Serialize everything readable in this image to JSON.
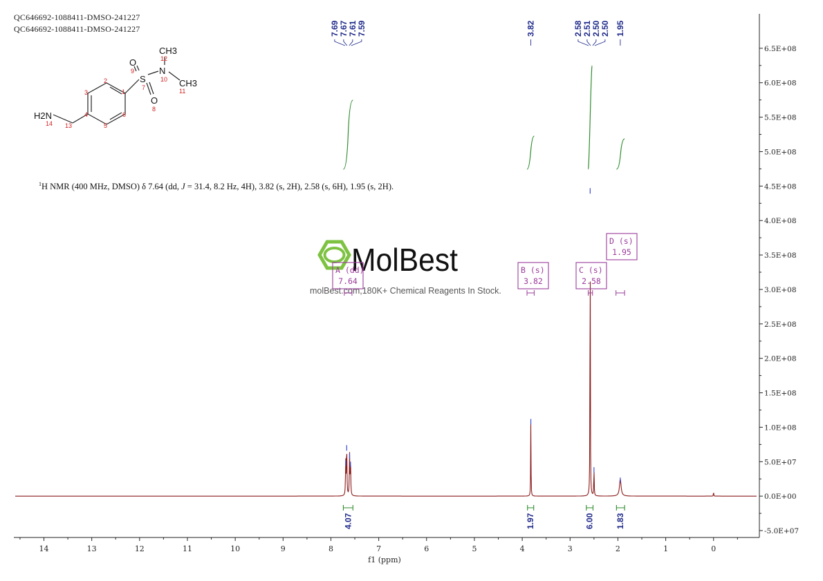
{
  "sample_ids": [
    "QC646692-1088411-DMSO-241227",
    "QC646692-1088411-DMSO-241227"
  ],
  "nmr_summary": {
    "prefix": "1",
    "text_a": "H NMR (400 MHz, DMSO) δ 7.64 (dd, ",
    "j": "J",
    "text_b": " = 31.4, 8.2 Hz, 4H), 3.82 (s, 2H), 2.58 (s, 6H), 1.95 (s, 2H)."
  },
  "watermark": {
    "brand": "MolBest",
    "tagline": "molBest.com,180K+ Chemical Reagents In Stock."
  },
  "molecule": {
    "atoms": [
      "CH3",
      "12",
      "O",
      "9",
      "N",
      "S",
      "10",
      "7",
      "CH3",
      "11",
      "O",
      "8",
      "1",
      "2",
      "3",
      "4",
      "5",
      "6",
      "H2N",
      "14",
      "13"
    ]
  },
  "colors": {
    "spectrum": "#8b1a1a",
    "integral": "#2e8b2e",
    "peak_label": "#1f2a8a",
    "multiplet_box": "#9b3b9b",
    "axis": "#222222",
    "atom_number": "#d02020"
  },
  "chart_data": {
    "type": "line",
    "xlabel": "f1 (ppm)",
    "xlim": [
      14.6,
      -0.9
    ],
    "x_ticks": [
      "14",
      "13",
      "12",
      "11",
      "10",
      "9",
      "8",
      "7",
      "6",
      "5",
      "4",
      "3",
      "2",
      "1",
      "0"
    ],
    "ylim": [
      -60000000,
      700000000
    ],
    "y_ticks": [
      "6.5E+08",
      "6.0E+08",
      "5.5E+08",
      "5.0E+08",
      "4.5E+08",
      "4.0E+08",
      "3.5E+08",
      "3.0E+08",
      "2.5E+08",
      "2.0E+08",
      "1.5E+08",
      "1.0E+08",
      "5.0E+07",
      "0.0E+00",
      "-5.0E+07"
    ],
    "peaks": [
      {
        "ppm": 7.69,
        "height": 50000000
      },
      {
        "ppm": 7.67,
        "height": 72000000
      },
      {
        "ppm": 7.61,
        "height": 60000000
      },
      {
        "ppm": 7.59,
        "height": 48000000
      },
      {
        "ppm": 3.82,
        "height": 110000000
      },
      {
        "ppm": 2.58,
        "height": 445000000
      },
      {
        "ppm": 2.5,
        "height": 40000000
      },
      {
        "ppm": 1.95,
        "height": 25000000
      },
      {
        "ppm": 0.0,
        "height": 10000000
      }
    ],
    "peak_labels": {
      "group1": [
        "7.69",
        "7.67",
        "7.61",
        "7.59"
      ],
      "group2": [
        "3.82"
      ],
      "group3": [
        "2.58",
        "2.51",
        "2.50",
        "2.50"
      ],
      "group4": [
        "1.95"
      ]
    },
    "multiplets": [
      {
        "label": "A (dd)",
        "shift": "7.64"
      },
      {
        "label": "B (s)",
        "shift": "3.82"
      },
      {
        "label": "C (s)",
        "shift": "2.58"
      },
      {
        "label": "D (s)",
        "shift": "1.95"
      }
    ],
    "integrals": [
      {
        "value": "4.07",
        "from": 7.74,
        "to": 7.54
      },
      {
        "value": "1.97",
        "from": 3.89,
        "to": 3.76
      },
      {
        "value": "6.00",
        "from": 2.66,
        "to": 2.52
      },
      {
        "value": "1.83",
        "from": 2.03,
        "to": 1.86
      }
    ]
  }
}
